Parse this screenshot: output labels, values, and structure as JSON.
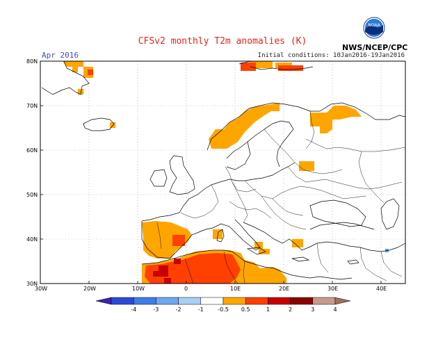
{
  "title": "CFSv2 monthly T2m anomalies (K)",
  "period": "Apr 2016",
  "init_conditions": "Initial conditions: 10Jan2016-19Jan2016",
  "agency": "NWS/NCEP/CPC",
  "logo_text": "NOAA",
  "colors": {
    "title": "#e8231a",
    "period": "#3b4cc0",
    "anomaly_0p5_1": "#ffa500",
    "anomaly_1_2": "#ff4000",
    "anomaly_2_3": "#c80000",
    "anomaly_neg": "#5aa0e6"
  },
  "map": {
    "lon_range": [
      -30,
      45
    ],
    "lat_range": [
      30,
      80
    ],
    "lat_labels": [
      "80N",
      "70N",
      "60N",
      "50N",
      "40N",
      "30N"
    ],
    "lon_labels": [
      "30W",
      "20W",
      "10W",
      "0",
      "10E",
      "20E",
      "30E",
      "40E"
    ]
  },
  "colorbar": {
    "labels": [
      "-4",
      "-3",
      "-2",
      "-1",
      "-0.5",
      "0.5",
      "1",
      "2",
      "3",
      "4"
    ],
    "colors": [
      "#3e1fb0",
      "#2a4bd7",
      "#3c7ee6",
      "#6fa8f0",
      "#a7cff8",
      "#ffffff",
      "#ffa500",
      "#ff4000",
      "#c80000",
      "#8b0000",
      "#c89a8c",
      "#a07060"
    ]
  }
}
